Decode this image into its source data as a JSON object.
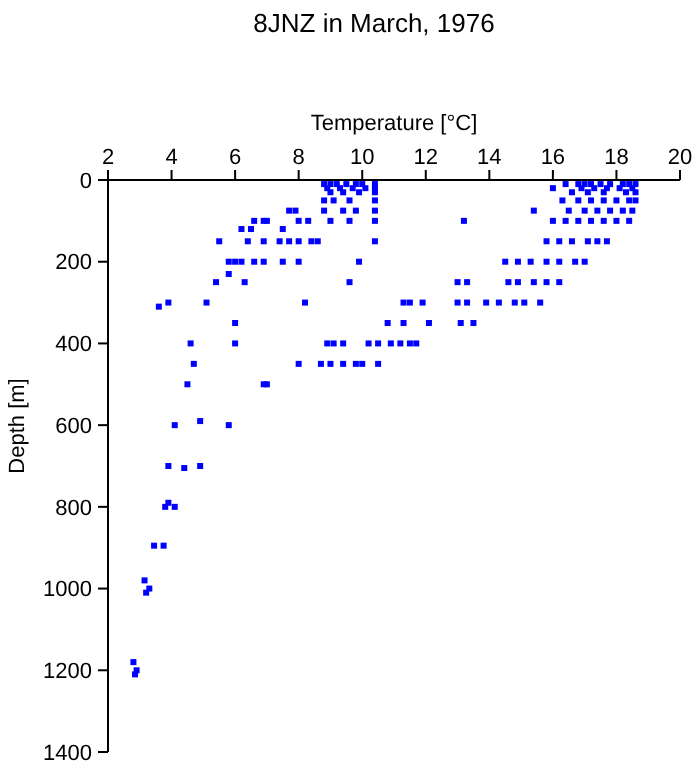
{
  "chart_data": {
    "type": "scatter",
    "title": "8JNZ in March, 1976",
    "xlabel": "Temperature [°C]",
    "ylabel": "Depth [m]",
    "xlim": [
      2,
      20
    ],
    "xticks": [
      2,
      4,
      6,
      8,
      10,
      12,
      14,
      16,
      18,
      20
    ],
    "ylim": [
      1400,
      0
    ],
    "yticks": [
      0,
      200,
      400,
      600,
      800,
      1000,
      1200,
      1400
    ],
    "marker": "square",
    "series": [
      {
        "color": "#0000ff",
        "x": [
          8.8,
          9.0,
          9.2,
          9.5,
          9.8,
          10.0,
          10.4,
          16.4,
          16.8,
          17.0,
          17.2,
          17.5,
          17.8,
          18.2,
          18.4,
          18.6,
          8.9,
          9.3,
          9.7,
          10.1,
          10.4,
          16.0,
          16.9,
          17.3,
          17.7,
          18.1,
          18.5,
          9.0,
          9.4,
          9.9,
          10.4,
          16.6,
          17.1,
          17.6,
          18.3,
          18.6,
          8.8,
          9.1,
          9.6,
          10.4,
          16.3,
          16.8,
          17.2,
          17.6,
          18.0,
          18.4,
          18.6,
          7.7,
          7.9,
          8.8,
          9.4,
          9.8,
          10.4,
          15.4,
          16.5,
          17.0,
          17.4,
          17.8,
          18.2,
          18.5,
          6.6,
          6.9,
          7.0,
          8.0,
          8.3,
          9.0,
          9.6,
          10.4,
          13.2,
          16.0,
          16.4,
          16.8,
          17.2,
          17.6,
          18.0,
          18.4,
          6.2,
          6.5,
          7.5,
          5.5,
          6.4,
          6.9,
          7.4,
          7.7,
          8.0,
          8.4,
          8.6,
          10.4,
          15.8,
          16.2,
          16.6,
          17.1,
          17.4,
          17.7,
          5.8,
          6.0,
          6.2,
          6.6,
          6.9,
          7.5,
          8.0,
          9.9,
          14.5,
          14.9,
          15.3,
          15.8,
          16.2,
          16.7,
          17.0,
          5.8,
          5.4,
          6.3,
          9.6,
          13.0,
          13.3,
          14.6,
          14.9,
          15.4,
          15.8,
          16.2,
          3.9,
          5.1,
          8.2,
          11.3,
          11.5,
          11.9,
          13.0,
          13.3,
          13.9,
          14.3,
          14.8,
          15.1,
          15.6,
          3.6,
          6.0,
          10.8,
          11.3,
          12.1,
          13.1,
          13.5,
          4.6,
          6.0,
          8.9,
          9.1,
          9.4,
          10.2,
          10.5,
          10.9,
          11.2,
          11.5,
          11.7,
          4.7,
          8.0,
          8.7,
          9.0,
          9.4,
          9.8,
          10.0,
          10.5,
          4.5,
          6.9,
          7.0,
          4.1,
          4.9,
          5.8,
          3.9,
          4.4,
          4.9,
          3.8,
          4.1,
          3.9,
          3.45,
          3.75,
          3.15,
          3.3,
          3.2,
          2.8,
          2.9,
          2.85
        ],
        "values": [
          10,
          10,
          10,
          10,
          10,
          10,
          10,
          10,
          10,
          10,
          10,
          10,
          10,
          10,
          10,
          10,
          20,
          20,
          20,
          20,
          20,
          20,
          20,
          20,
          20,
          20,
          20,
          30,
          30,
          30,
          30,
          30,
          30,
          30,
          30,
          30,
          50,
          50,
          50,
          50,
          50,
          50,
          50,
          50,
          50,
          50,
          50,
          75,
          75,
          75,
          75,
          75,
          75,
          75,
          75,
          75,
          75,
          75,
          75,
          75,
          100,
          100,
          100,
          100,
          100,
          100,
          100,
          100,
          100,
          100,
          100,
          100,
          100,
          100,
          100,
          100,
          120,
          120,
          120,
          150,
          150,
          150,
          150,
          150,
          150,
          150,
          150,
          150,
          150,
          150,
          150,
          150,
          150,
          150,
          200,
          200,
          200,
          200,
          200,
          200,
          200,
          200,
          200,
          200,
          200,
          200,
          200,
          200,
          200,
          230,
          250,
          250,
          250,
          250,
          250,
          250,
          250,
          250,
          250,
          250,
          300,
          300,
          300,
          300,
          300,
          300,
          300,
          300,
          300,
          300,
          300,
          300,
          300,
          310,
          350,
          350,
          350,
          350,
          350,
          350,
          400,
          400,
          400,
          400,
          400,
          400,
          400,
          400,
          400,
          400,
          400,
          450,
          450,
          450,
          450,
          450,
          450,
          450,
          450,
          500,
          500,
          500,
          600,
          590,
          600,
          700,
          705,
          700,
          800,
          800,
          790,
          895,
          895,
          980,
          1000,
          1010,
          1180,
          1200,
          1210
        ]
      }
    ]
  }
}
